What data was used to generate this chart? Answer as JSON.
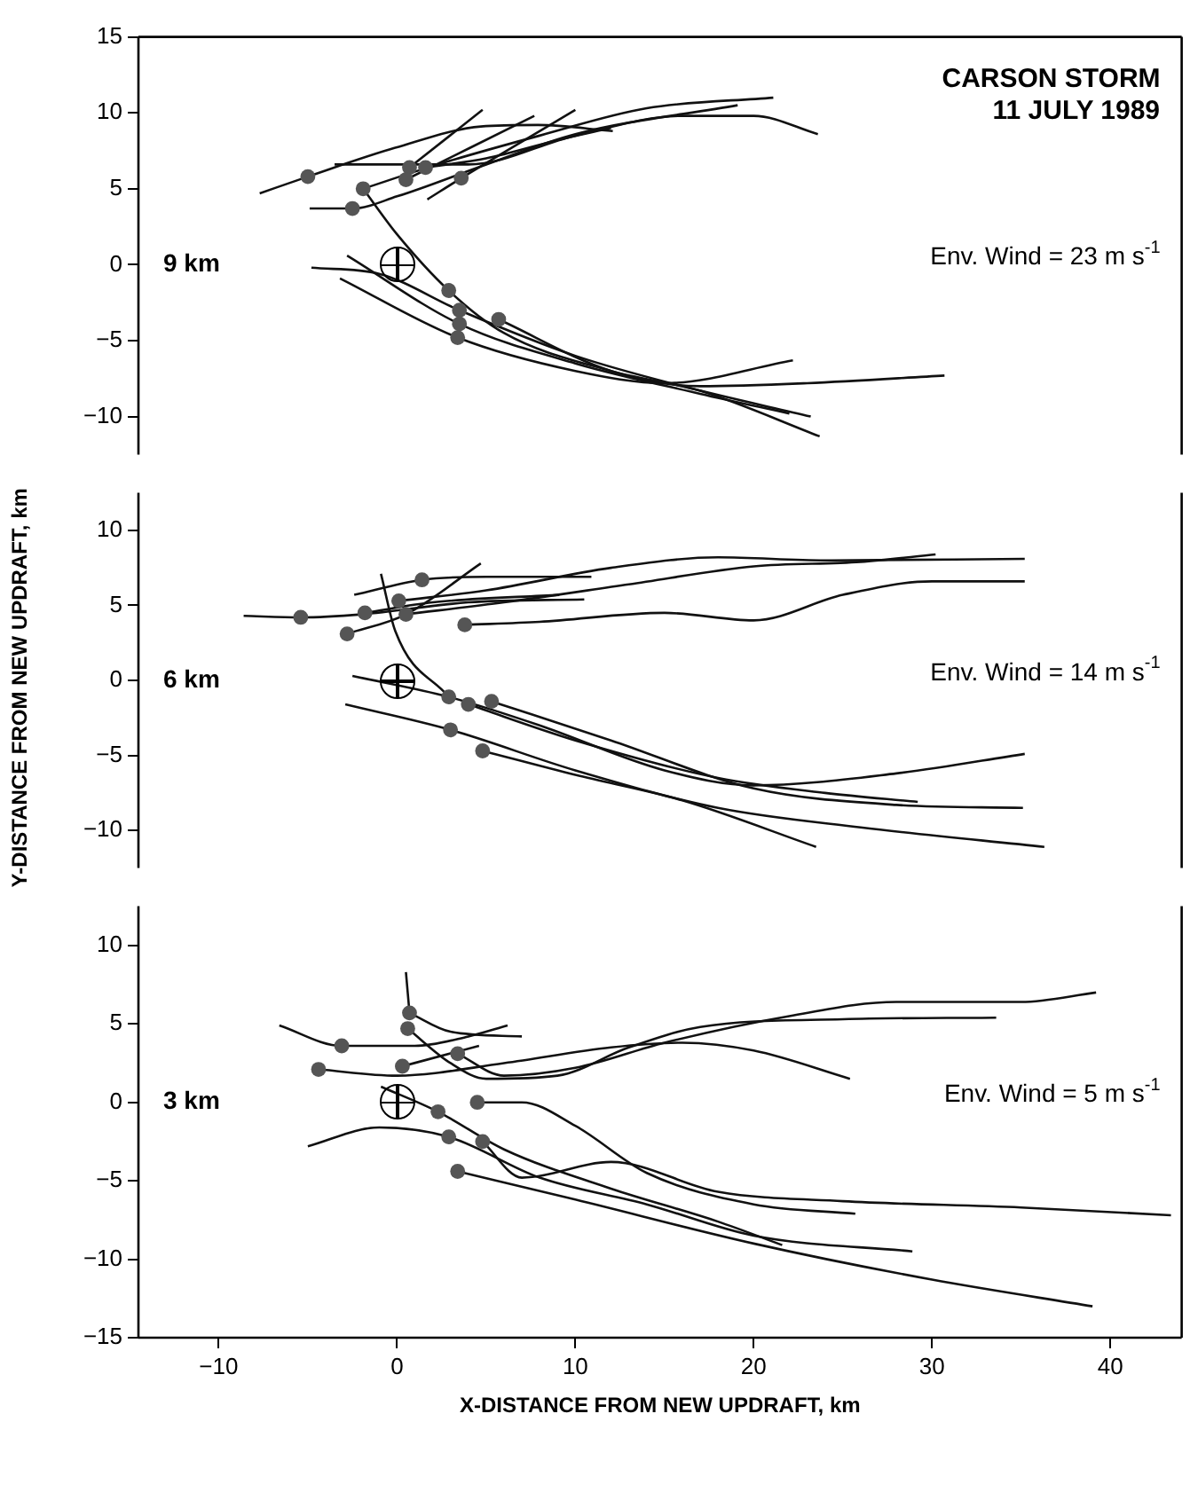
{
  "chart_data": [
    {
      "type": "line",
      "title": "CARSON STORM",
      "subtitle": "11 JULY 1989",
      "ylabel": "Y-DISTANCE FROM NEW UPDRAFT, km",
      "annotations": [
        "9 km",
        "Env. Wind = 23 m s$^{-1}$"
      ],
      "xlim": [
        -14.5,
        44
      ],
      "ylim": [
        -12.5,
        15
      ],
      "yticks": [
        -10,
        -5,
        0,
        5,
        10,
        15
      ],
      "tick_labels": "y",
      "marker": "none",
      "line_style": "solid",
      "series": [
        {
          "color": "#111111",
          "x": [
            -7.7,
            -5,
            -0.1,
            4.7,
            7.9,
            12.1
          ],
          "values": [
            4.7,
            5.8,
            7.7,
            9.1,
            9.2,
            8.8
          ]
        },
        {
          "color": "#111111",
          "x": [
            -3.5,
            4,
            10,
            16,
            20,
            23.6
          ],
          "values": [
            6.6,
            6.6,
            8.5,
            9.8,
            9.8,
            8.6
          ]
        },
        {
          "color": "#111111",
          "x": [
            -1.9,
            2,
            8,
            14,
            21.1
          ],
          "values": [
            5.0,
            6.5,
            8.5,
            10.3,
            11.0
          ]
        },
        {
          "color": "#111111",
          "x": [
            -4.9,
            -2.5,
            0,
            5,
            10,
            19.1
          ],
          "values": [
            3.7,
            3.7,
            4.5,
            6.6,
            8.6,
            10.5
          ]
        },
        {
          "color": "#111111",
          "x": [
            0.7,
            4.8
          ],
          "values": [
            6.4,
            10.2
          ]
        },
        {
          "color": "#111111",
          "x": [
            0.5,
            7.7
          ],
          "values": [
            5.6,
            9.8
          ]
        },
        {
          "color": "#111111",
          "x": [
            1.7,
            3.6,
            10
          ],
          "values": [
            4.3,
            5.7,
            10.2
          ]
        },
        {
          "color": "#111111",
          "x": [
            1.6,
            5,
            9,
            12
          ],
          "values": [
            6.4,
            7,
            8.2,
            9
          ]
        },
        {
          "color": "#111111",
          "x": [
            -1.9,
            0,
            2.9,
            6,
            12,
            17,
            23.7
          ],
          "values": [
            5.0,
            2,
            -1.7,
            -4.5,
            -7,
            -8.3,
            -11.3
          ]
        },
        {
          "color": "#111111",
          "x": [
            -4.8,
            -1,
            3.5,
            10,
            16,
            23.2
          ],
          "values": [
            -0.2,
            -0.6,
            -3.0,
            -6,
            -8,
            -10.0
          ]
        },
        {
          "color": "#111111",
          "x": [
            -2.8,
            3.5,
            10,
            17,
            22
          ],
          "values": [
            0.6,
            -3.9,
            -6.5,
            -8.5,
            -9.8
          ]
        },
        {
          "color": "#111111",
          "x": [
            -3.2,
            3.4,
            10,
            15,
            22.2
          ],
          "values": [
            -0.9,
            -4.8,
            -7,
            -7.8,
            -6.3
          ]
        },
        {
          "color": "#111111",
          "x": [
            5.7,
            12,
            17,
            23,
            30.7
          ],
          "values": [
            -3.6,
            -7,
            -8,
            -7.8,
            -7.3
          ]
        },
        {
          "type": "scatter",
          "marker": "circle",
          "color": "#555555",
          "x": [
            -5,
            -1.9,
            -2.5,
            0.7,
            1.6,
            0.5,
            3.6,
            2.9,
            3.5,
            3.5,
            3.4,
            5.7
          ],
          "values": [
            5.8,
            5.0,
            3.7,
            6.4,
            6.4,
            5.6,
            5.7,
            -1.7,
            -3.0,
            -3.9,
            -4.8,
            -3.6
          ]
        }
      ]
    },
    {
      "type": "line",
      "annotations": [
        "6 km",
        "Env. Wind = 14 m s$^{-1}$"
      ],
      "xlim": [
        -14.5,
        44
      ],
      "ylim": [
        -12.5,
        12.5
      ],
      "yticks": [
        -10,
        -5,
        0,
        5,
        10
      ],
      "tick_labels": "y",
      "marker": "none",
      "line_style": "solid",
      "series": [
        {
          "color": "#111111",
          "x": [
            -8.6,
            -5.4,
            -2,
            4,
            10.5
          ],
          "values": [
            4.3,
            4.2,
            4.4,
            5.2,
            5.4
          ]
        },
        {
          "color": "#111111",
          "x": [
            -2.8,
            0.5,
            4.7
          ],
          "values": [
            3.1,
            4.4,
            7.8
          ]
        },
        {
          "color": "#111111",
          "x": [
            -2.4,
            1.4,
            5,
            10.9
          ],
          "values": [
            5.7,
            6.7,
            6.9,
            6.9
          ]
        },
        {
          "color": "#111111",
          "x": [
            -1.8,
            2,
            9.1
          ],
          "values": [
            4.5,
            5.2,
            5.7
          ]
        },
        {
          "color": "#111111",
          "x": [
            3.8,
            8,
            15,
            20,
            25,
            30,
            35.2
          ],
          "values": [
            3.7,
            3.9,
            4.5,
            4,
            5.7,
            6.6,
            6.6
          ]
        },
        {
          "color": "#111111",
          "x": [
            0.1,
            5,
            12,
            18,
            24,
            35.2
          ],
          "values": [
            5.3,
            6,
            7.5,
            8.2,
            8.0,
            8.1
          ]
        },
        {
          "color": "#111111",
          "x": [
            0.5,
            6,
            13,
            20,
            26,
            30.2
          ],
          "values": [
            4.4,
            5.2,
            6.4,
            7.6,
            7.9,
            8.4
          ]
        },
        {
          "color": "#111111",
          "x": [
            -0.9,
            -0.1,
            2.9
          ],
          "values": [
            7.1,
            3.3,
            -1.1
          ]
        },
        {
          "color": "#111111",
          "x": [
            -2.5,
            2.9,
            8,
            15,
            20,
            28,
            35.2
          ],
          "values": [
            0.3,
            -1.1,
            -3,
            -6,
            -7,
            -6.2,
            -4.9
          ]
        },
        {
          "color": "#111111",
          "x": [
            4.0,
            10,
            18,
            24,
            29.2
          ],
          "values": [
            -1.6,
            -4,
            -6.5,
            -7.5,
            -8.1
          ]
        },
        {
          "color": "#111111",
          "x": [
            5.3,
            12,
            20,
            28,
            35.1
          ],
          "values": [
            -1.4,
            -4,
            -7.2,
            -8.3,
            -8.5
          ]
        },
        {
          "color": "#111111",
          "x": [
            -2.9,
            3.0,
            10,
            18,
            26,
            36.3
          ],
          "values": [
            -1.6,
            -3.3,
            -6,
            -8.5,
            -9.8,
            -11.1
          ]
        },
        {
          "color": "#111111",
          "x": [
            4.8,
            10,
            16,
            23.5
          ],
          "values": [
            -4.7,
            -6.3,
            -8,
            -11.1
          ]
        },
        {
          "type": "scatter",
          "marker": "circle",
          "color": "#555555",
          "x": [
            -5.4,
            -2.8,
            -1.8,
            0.1,
            0.5,
            1.4,
            3.8,
            2.9,
            4.0,
            5.3,
            3.0,
            4.8
          ],
          "values": [
            4.2,
            3.1,
            4.5,
            5.3,
            4.4,
            6.7,
            3.7,
            -1.1,
            -1.6,
            -1.4,
            -3.3,
            -4.7
          ]
        }
      ]
    },
    {
      "type": "line",
      "xlabel": "X-DISTANCE FROM NEW UPDRAFT, km",
      "annotations": [
        "3 km",
        "Env. Wind = 5 m s$^{-1}$"
      ],
      "xlim": [
        -14.5,
        44
      ],
      "xticks": [
        -10,
        0,
        10,
        20,
        30,
        40
      ],
      "ylim": [
        -15,
        12.5
      ],
      "yticks": [
        -15,
        -10,
        -5,
        0,
        5,
        10
      ],
      "marker": "none",
      "line_style": "solid",
      "series": [
        {
          "color": "#111111",
          "x": [
            -6.6,
            -3.1,
            1,
            4,
            6.2
          ],
          "values": [
            4.9,
            3.6,
            3.6,
            4.2,
            4.9
          ]
        },
        {
          "color": "#111111",
          "x": [
            -4.4,
            0,
            6,
            12,
            16,
            20,
            25.4
          ],
          "values": [
            2.1,
            1.7,
            2.5,
            3.5,
            3.8,
            3.3,
            1.5
          ]
        },
        {
          "color": "#111111",
          "x": [
            0.7,
            3,
            7
          ],
          "values": [
            5.7,
            4.5,
            4.2
          ]
        },
        {
          "color": "#111111",
          "x": [
            0.6,
            3,
            5,
            9,
            13,
            17,
            25,
            33.6
          ],
          "values": [
            4.7,
            2.5,
            1.5,
            1.7,
            3.5,
            4.8,
            5.3,
            5.4
          ]
        },
        {
          "color": "#111111",
          "x": [
            0.3,
            4.6
          ],
          "values": [
            2.3,
            3.6
          ]
        },
        {
          "color": "#111111",
          "x": [
            3.4,
            6,
            10,
            15,
            22,
            28,
            35,
            39.2
          ],
          "values": [
            3.1,
            1.7,
            2.2,
            3.8,
            5.5,
            6.4,
            6.4,
            7.0
          ]
        },
        {
          "color": "#111111",
          "x": [
            0.5,
            0.7
          ],
          "values": [
            8.3,
            5.7
          ]
        },
        {
          "color": "#111111",
          "x": [
            -0.9,
            2.3,
            6,
            12,
            18,
            21.6
          ],
          "values": [
            1.0,
            -0.6,
            -3,
            -5.5,
            -7.6,
            -9.1
          ]
        },
        {
          "color": "#111111",
          "x": [
            4.5,
            7,
            10,
            14,
            20,
            25.7
          ],
          "values": [
            0.0,
            0,
            -1.5,
            -4.5,
            -6.5,
            -7.1
          ]
        },
        {
          "color": "#111111",
          "x": [
            -5,
            -1,
            2.9,
            8,
            14,
            20,
            28.9
          ],
          "values": [
            -2.8,
            -1.6,
            -2.2,
            -4.8,
            -6.5,
            -8.5,
            -9.5
          ]
        },
        {
          "color": "#111111",
          "x": [
            4.8,
            7,
            12,
            18,
            25,
            35,
            43.4
          ],
          "values": [
            -2.5,
            -4.8,
            -3.8,
            -5.7,
            -6.3,
            -6.7,
            -7.2
          ]
        },
        {
          "color": "#111111",
          "x": [
            3.4,
            10,
            20,
            30,
            39
          ],
          "values": [
            -4.4,
            -6.2,
            -9,
            -11.3,
            -13
          ]
        },
        {
          "type": "scatter",
          "marker": "circle",
          "color": "#555555",
          "x": [
            0.7,
            0.6,
            -3.1,
            -4.4,
            0.3,
            3.4,
            2.3,
            4.5,
            2.9,
            4.8,
            3.4
          ],
          "values": [
            5.7,
            4.7,
            3.6,
            2.1,
            2.3,
            3.1,
            -0.6,
            0.0,
            -2.2,
            -2.5,
            -4.4
          ]
        }
      ]
    }
  ]
}
